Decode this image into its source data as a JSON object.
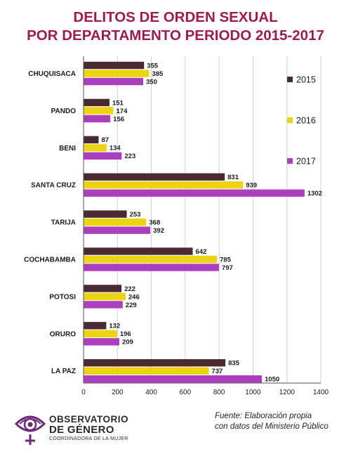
{
  "title_line1": "DELITOS DE ORDEN SEXUAL",
  "title_line2": "POR DEPARTAMENTO PERIODO 2015-2017",
  "source_line1": "Fuente: Elaboración propia",
  "source_line2": "con datos del Ministerio Público",
  "logo": {
    "name_line1": "OBSERVATORIO",
    "name_line2": "DE GÉNERO",
    "subtitle": "COORDINADORA DE LA MUJER",
    "icon": "eye-female-symbol-icon"
  },
  "chart_data": {
    "type": "bar",
    "orientation": "horizontal",
    "categories": [
      "CHUQUISACA",
      "PANDO",
      "BENI",
      "SANTA CRUZ",
      "TARIJA",
      "COCHABAMBA",
      "POTOSI",
      "ORURO",
      "LA PAZ"
    ],
    "series": [
      {
        "name": "2015",
        "color": "#4a2a33",
        "values": [
          355,
          151,
          87,
          831,
          253,
          642,
          222,
          132,
          835
        ]
      },
      {
        "name": "2016",
        "color": "#ecd412",
        "values": [
          385,
          174,
          134,
          939,
          368,
          785,
          246,
          196,
          737
        ]
      },
      {
        "name": "2017",
        "color": "#ab3fbd",
        "values": [
          350,
          156,
          223,
          1302,
          392,
          797,
          229,
          209,
          1050
        ]
      }
    ],
    "xlim": [
      0,
      1400
    ],
    "xticks": [
      0,
      200,
      400,
      600,
      800,
      1000,
      1200,
      1400
    ],
    "grid": true,
    "legend_position": "right"
  }
}
